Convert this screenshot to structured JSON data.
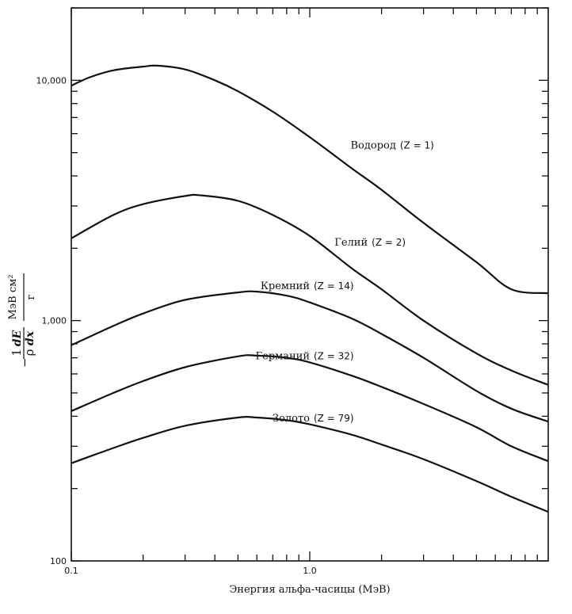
{
  "chart_data": {
    "type": "line",
    "xscale": "log",
    "yscale": "log",
    "xlim": [
      0.1,
      10
    ],
    "ylim": [
      100,
      20000
    ],
    "xlabel": "Энергия альфа-часицы (МэВ)",
    "ylabel_parts": {
      "sign": "−",
      "one": "1",
      "dE": "dE",
      "rho": "ρ",
      "dx": "dx",
      "unit_num": "МэВ см²",
      "unit_den": "г"
    },
    "x_tick_labels": [
      {
        "value": 0.1,
        "label": "0.1"
      },
      {
        "value": 1.0,
        "label": "1.0"
      }
    ],
    "y_tick_labels": [
      {
        "value": 100,
        "label": "100"
      },
      {
        "value": 1000,
        "label": "1,000"
      },
      {
        "value": 10000,
        "label": "10,000"
      }
    ],
    "series": [
      {
        "name": "Водород",
        "z_label": "(Z = 1)",
        "x": [
          0.1,
          0.12,
          0.15,
          0.2,
          0.23,
          0.3,
          0.4,
          0.5,
          0.7,
          1.0,
          1.5,
          2.0,
          3.0,
          5.0,
          7.0,
          10.0
        ],
        "y": [
          9500,
          10300,
          11000,
          11400,
          11500,
          11100,
          10000,
          9000,
          7400,
          5800,
          4300,
          3500,
          2550,
          1750,
          1350,
          1300
        ]
      },
      {
        "name": "Гелий",
        "z_label": "(Z =  2)",
        "x": [
          0.1,
          0.15,
          0.2,
          0.3,
          0.35,
          0.5,
          0.7,
          1.0,
          1.5,
          2.0,
          3.0,
          5.0,
          7.0,
          10.0
        ],
        "y": [
          2200,
          2750,
          3050,
          3300,
          3320,
          3150,
          2750,
          2250,
          1650,
          1350,
          1000,
          730,
          620,
          540
        ]
      },
      {
        "name": "Кремний",
        "z_label": "(Z = 14)",
        "x": [
          0.1,
          0.15,
          0.2,
          0.3,
          0.5,
          0.6,
          0.8,
          1.0,
          1.5,
          2.0,
          3.0,
          5.0,
          7.0,
          10.0
        ],
        "y": [
          790,
          950,
          1070,
          1220,
          1310,
          1320,
          1270,
          1190,
          1020,
          880,
          700,
          510,
          430,
          380
        ]
      },
      {
        "name": "Германий",
        "z_label": "(Z = 32)",
        "x": [
          0.1,
          0.15,
          0.2,
          0.3,
          0.5,
          0.6,
          0.8,
          1.0,
          1.5,
          2.0,
          3.0,
          5.0,
          7.0,
          10.0
        ],
        "y": [
          420,
          500,
          560,
          640,
          710,
          715,
          700,
          670,
          590,
          530,
          450,
          360,
          300,
          260
        ]
      },
      {
        "name": "Золото",
        "z_label": "(Z = 79)",
        "x": [
          0.1,
          0.15,
          0.2,
          0.3,
          0.5,
          0.6,
          0.8,
          1.0,
          1.5,
          2.0,
          3.0,
          5.0,
          7.0,
          10.0
        ],
        "y": [
          255,
          295,
          325,
          365,
          395,
          395,
          385,
          370,
          335,
          305,
          265,
          215,
          185,
          160
        ]
      }
    ],
    "grid": false,
    "legend": "inline labels near curves"
  }
}
